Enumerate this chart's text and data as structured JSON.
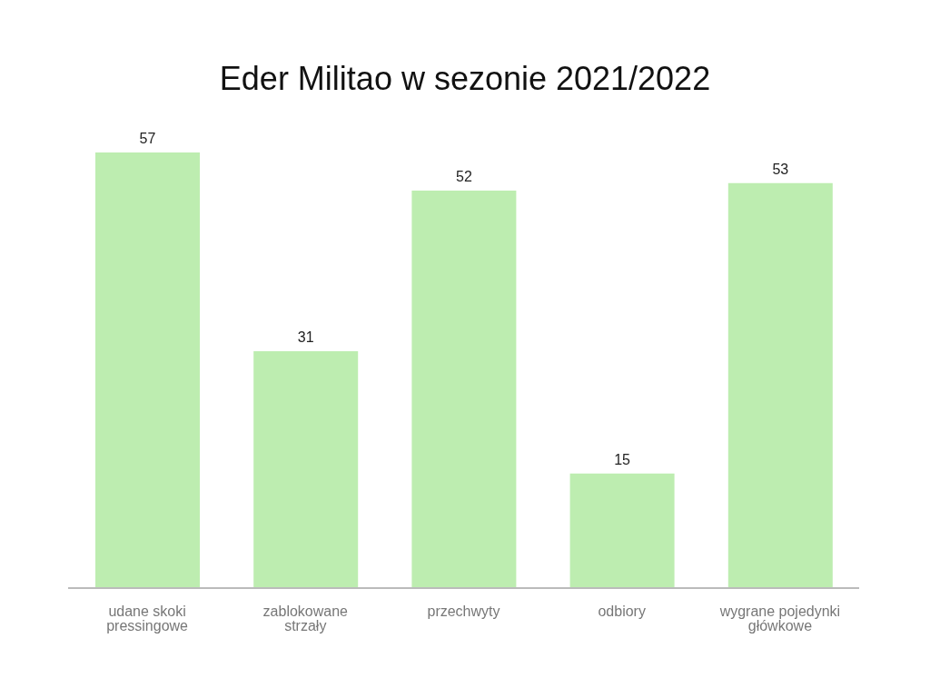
{
  "chart_data": {
    "type": "bar",
    "title": "Eder Militao w sezonie 2021/2022",
    "categories": [
      "udane skoki pressingowe",
      "zablokowane strzały",
      "przechwyty",
      "odbiory",
      "wygrane pojedynki główkowe"
    ],
    "values": [
      57,
      31,
      52,
      15,
      53
    ],
    "color": "#bdedb0",
    "data_labels": true,
    "grid": false,
    "legend": false
  }
}
